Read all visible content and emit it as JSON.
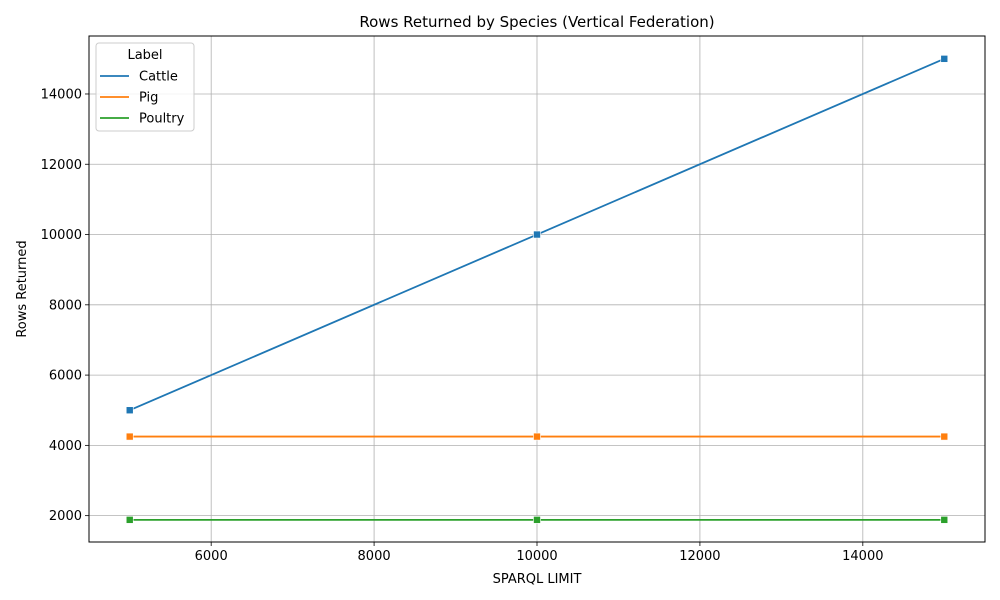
{
  "chart_data": {
    "type": "line",
    "title": "Rows Returned by Species (Vertical Federation)",
    "xlabel": "SPARQL LIMIT",
    "ylabel": "Rows Returned",
    "x": [
      5000,
      10000,
      15000
    ],
    "xlim": [
      4500,
      15500
    ],
    "ylim": [
      1250,
      15650
    ],
    "xticks": [
      6000,
      8000,
      10000,
      12000,
      14000
    ],
    "yticks": [
      2000,
      4000,
      6000,
      8000,
      10000,
      12000,
      14000
    ],
    "grid": true,
    "legend": {
      "title": "Label",
      "position": "top-left"
    },
    "series": [
      {
        "name": "Cattle",
        "color": "#1f77b4",
        "values": [
          5000,
          10000,
          15000
        ]
      },
      {
        "name": "Pig",
        "color": "#ff7f0e",
        "values": [
          4250,
          4250,
          4250
        ]
      },
      {
        "name": "Poultry",
        "color": "#2ca02c",
        "values": [
          1880,
          1880,
          1880
        ]
      }
    ],
    "marker": "square"
  }
}
